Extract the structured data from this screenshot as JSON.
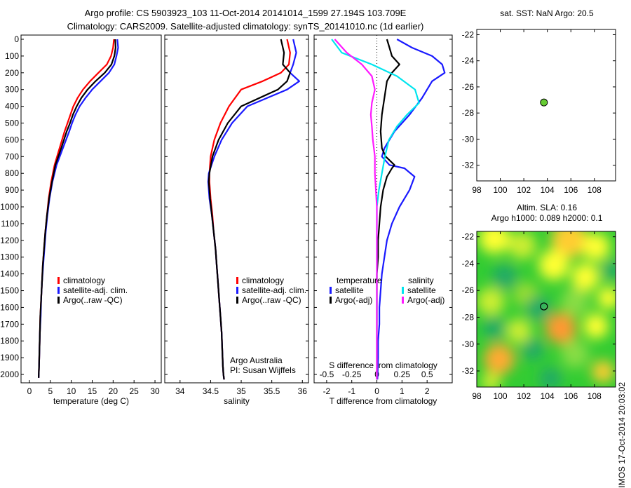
{
  "header": {
    "title_line1": "Argo profile: CS 5903923_103 11-Oct-2014 20141014_1599 27.194S 103.709E",
    "title_line2": "Climatology: CARS2009. Satellite-adjusted climatology: synTS_20141010.nc (1d earlier)"
  },
  "colors": {
    "climatology": "#ff0000",
    "satellite": "#1a1aff",
    "argo": "#000000",
    "salinity_sat": "#00e5ee",
    "salinity_argo": "#ff1aff"
  },
  "chart_data": [
    {
      "type": "line",
      "panel": "temperature",
      "xlabel": "temperature (deg C)",
      "xticks": [
        0,
        5,
        10,
        15,
        20,
        25,
        30
      ],
      "xlim": [
        -2,
        31.5
      ],
      "ylim": [
        2050,
        0
      ],
      "yticks": [
        0,
        100,
        200,
        300,
        400,
        500,
        600,
        700,
        800,
        900,
        1000,
        1100,
        1200,
        1300,
        1400,
        1500,
        1600,
        1700,
        1800,
        1900,
        2000
      ],
      "legend": [
        "climatology",
        "satellite-adj. clim.",
        "Argo(..raw -QC)"
      ],
      "series": [
        {
          "name": "climatology",
          "color": "#ff0000",
          "x": [
            20.2,
            20.0,
            19.5,
            18.5,
            16.5,
            14.5,
            12.8,
            11.5,
            10.5,
            9.8,
            9.1,
            8.4,
            7.2,
            6.0,
            5.2,
            4.6,
            4.2,
            3.8,
            3.5,
            3.2,
            3.0,
            2.8,
            2.6,
            2.5,
            2.4,
            2.3,
            2.2
          ],
          "y": [
            0,
            50,
            100,
            150,
            200,
            250,
            300,
            350,
            400,
            450,
            500,
            550,
            650,
            750,
            850,
            950,
            1050,
            1150,
            1250,
            1350,
            1450,
            1550,
            1650,
            1750,
            1850,
            1950,
            2020
          ]
        },
        {
          "name": "satellite-adj. clim.",
          "color": "#1a1aff",
          "x": [
            21.0,
            21.2,
            20.8,
            20.3,
            19.0,
            17.0,
            15.0,
            13.4,
            12.0,
            11.0,
            10.2,
            9.5,
            8.0,
            6.5,
            5.5,
            4.8,
            4.3,
            3.9,
            3.6,
            3.3,
            3.0,
            2.8,
            2.7,
            2.5,
            2.4,
            2.3,
            2.2
          ],
          "y": [
            0,
            50,
            100,
            150,
            200,
            250,
            300,
            350,
            400,
            450,
            500,
            550,
            650,
            750,
            850,
            950,
            1050,
            1150,
            1250,
            1350,
            1450,
            1550,
            1650,
            1750,
            1850,
            1950,
            2020
          ]
        },
        {
          "name": "Argo(..raw -QC)",
          "color": "#000000",
          "x": [
            20.5,
            20.6,
            20.3,
            19.6,
            18.0,
            15.8,
            13.9,
            12.4,
            11.3,
            10.4,
            9.7,
            8.9,
            7.6,
            6.2,
            5.4,
            4.7,
            4.2,
            3.8,
            3.5,
            3.2,
            3.0,
            2.8,
            2.6,
            2.5,
            2.4,
            2.3,
            2.2
          ],
          "y": [
            0,
            50,
            100,
            150,
            200,
            250,
            300,
            350,
            400,
            450,
            500,
            550,
            650,
            750,
            850,
            950,
            1050,
            1150,
            1250,
            1350,
            1450,
            1550,
            1650,
            1750,
            1850,
            1950,
            2020
          ]
        }
      ]
    },
    {
      "type": "line",
      "panel": "salinity",
      "xlabel": "salinity",
      "xticks": [
        34,
        34.5,
        35,
        35.5,
        36
      ],
      "xlim": [
        33.75,
        36.1
      ],
      "ylim": [
        2050,
        0
      ],
      "legend": [
        "climatology",
        "satellite-adj. clim.",
        "Argo(..raw -QC)"
      ],
      "annotation": [
        "Argo Australia",
        "PI: Susan Wijffels"
      ],
      "series": [
        {
          "name": "climatology",
          "color": "#ff0000",
          "x": [
            35.75,
            35.8,
            35.78,
            35.65,
            35.35,
            35.0,
            34.8,
            34.66,
            34.56,
            34.5,
            34.48,
            34.48,
            34.5,
            34.53,
            34.55,
            34.58,
            34.6,
            34.62,
            34.64,
            34.66,
            34.68,
            34.69,
            34.7,
            34.71,
            34.72
          ],
          "y": [
            0,
            80,
            150,
            200,
            250,
            300,
            400,
            500,
            600,
            700,
            800,
            850,
            950,
            1050,
            1150,
            1250,
            1350,
            1450,
            1550,
            1650,
            1750,
            1850,
            1950,
            2000,
            2030
          ]
        },
        {
          "name": "satellite-adj. clim.",
          "color": "#1a1aff",
          "x": [
            35.85,
            35.9,
            35.85,
            35.8,
            35.95,
            35.75,
            35.1,
            34.85,
            34.68,
            34.56,
            34.47,
            34.46,
            34.48,
            34.52,
            34.55,
            34.58,
            34.6,
            34.62,
            34.64,
            34.66,
            34.68,
            34.69,
            34.7,
            34.71,
            34.72
          ],
          "y": [
            0,
            80,
            150,
            200,
            250,
            300,
            400,
            500,
            600,
            700,
            800,
            850,
            950,
            1050,
            1150,
            1250,
            1350,
            1450,
            1550,
            1650,
            1750,
            1850,
            1950,
            2000,
            2030
          ]
        },
        {
          "name": "Argo(..raw -QC)",
          "color": "#000000",
          "x": [
            35.65,
            35.7,
            35.68,
            35.8,
            35.75,
            35.6,
            35.0,
            34.78,
            34.63,
            34.53,
            34.48,
            34.47,
            34.49,
            34.52,
            34.55,
            34.58,
            34.6,
            34.62,
            34.64,
            34.66,
            34.68,
            34.69,
            34.7,
            34.71,
            34.72
          ],
          "y": [
            0,
            80,
            150,
            200,
            250,
            300,
            400,
            500,
            600,
            700,
            800,
            850,
            950,
            1050,
            1150,
            1250,
            1350,
            1450,
            1550,
            1650,
            1750,
            1850,
            1950,
            2000,
            2030
          ]
        }
      ]
    },
    {
      "type": "line",
      "panel": "difference",
      "xlabel": "T difference from climatology",
      "xlabel_top": "S difference from climatology",
      "xticks_T": [
        -2,
        -1,
        0,
        1,
        2
      ],
      "xticks_S": [
        -0.5,
        -0.25,
        0,
        0.25,
        0.5
      ],
      "xlim_T": [
        -2.5,
        3.0
      ],
      "ylim": [
        2050,
        0
      ],
      "legend": {
        "temperature_header": "temperature",
        "salinity_header": "salinity",
        "items": [
          "satellite",
          "Argo(-adj)",
          "satellite",
          "Argo(-adj)"
        ]
      },
      "series": [
        {
          "name": "temperature satellite",
          "color": "#1a1aff",
          "x": [
            0.8,
            1.4,
            2.2,
            2.6,
            2.7,
            2.2,
            1.8,
            1.3,
            0.7,
            0.3,
            0.2,
            0.5,
            1.1,
            1.5,
            1.3,
            0.9,
            0.6,
            0.4,
            0.3,
            0.2,
            0.15,
            0.1,
            0.1,
            0.05,
            0.05,
            0.02
          ],
          "y": [
            0,
            50,
            100,
            150,
            200,
            250,
            350,
            450,
            550,
            650,
            700,
            750,
            770,
            820,
            900,
            1000,
            1100,
            1200,
            1300,
            1400,
            1500,
            1600,
            1700,
            1800,
            1900,
            2030
          ]
        },
        {
          "name": "temperature Argo(-adj)",
          "color": "#000000",
          "x": [
            0.4,
            0.5,
            0.6,
            0.9,
            0.6,
            0.4,
            0.3,
            0.2,
            0.15,
            0.2,
            0.35,
            0.7,
            0.6,
            0.4,
            0.25,
            0.15,
            0.1,
            0.05,
            0.05,
            0.0,
            0.0,
            0.0,
            0.0,
            0.0,
            0.0,
            0.0
          ],
          "y": [
            0,
            50,
            100,
            150,
            200,
            250,
            350,
            450,
            550,
            650,
            700,
            750,
            770,
            820,
            900,
            1000,
            1100,
            1200,
            1300,
            1400,
            1500,
            1600,
            1700,
            1800,
            1900,
            2030
          ]
        },
        {
          "name": "salinity satellite",
          "color": "#00e5ee",
          "x": [
            -0.45,
            -0.35,
            -0.05,
            0.2,
            0.38,
            0.42,
            0.3,
            0.2,
            0.12,
            0.08,
            0.05,
            0.02,
            0.0,
            0.0,
            0.0,
            0.0,
            0.0,
            0.0,
            0.0,
            0.0
          ],
          "y": [
            0,
            80,
            150,
            220,
            300,
            380,
            450,
            520,
            600,
            700,
            800,
            900,
            1000,
            1100,
            1200,
            1400,
            1600,
            1800,
            1900,
            2030
          ]
        },
        {
          "name": "salinity Argo(-adj)",
          "color": "#ff1aff",
          "x": [
            -0.42,
            -0.3,
            -0.15,
            -0.05,
            -0.02,
            -0.05,
            -0.06,
            -0.05,
            -0.04,
            -0.02,
            -0.02,
            -0.01,
            0.0,
            0.0,
            0.0,
            0.0,
            0.0,
            0.0,
            0.0,
            0.0
          ],
          "y": [
            0,
            80,
            150,
            220,
            300,
            380,
            450,
            520,
            600,
            700,
            800,
            900,
            1000,
            1100,
            1200,
            1400,
            1600,
            1800,
            1900,
            2030
          ]
        }
      ]
    },
    {
      "type": "scatter",
      "panel": "sst_map",
      "title": "sat. SST: NaN Argo: 20.5",
      "xticks": [
        98,
        100,
        102,
        104,
        106,
        108
      ],
      "yticks": [
        -22,
        -24,
        -26,
        -28,
        -30,
        -32
      ],
      "xlim": [
        98,
        109.8
      ],
      "ylim": [
        -33.2,
        -21.6
      ],
      "points": [
        {
          "x": 103.709,
          "y": -27.194
        }
      ]
    },
    {
      "type": "heatmap",
      "panel": "sla_map",
      "title_line1": "Altim. SLA: 0.16",
      "title_line2": "Argo h1000: 0.089 h2000: 0.1",
      "xticks": [
        98,
        100,
        102,
        104,
        106,
        108
      ],
      "yticks": [
        -22,
        -24,
        -26,
        -28,
        -30,
        -32
      ],
      "xlim": [
        98,
        109.8
      ],
      "ylim": [
        -33.2,
        -21.6
      ],
      "points": [
        {
          "x": 103.709,
          "y": -27.194
        }
      ]
    }
  ],
  "footer": {
    "stamp": "IMOS 17-Oct-2014 20:03:02"
  }
}
